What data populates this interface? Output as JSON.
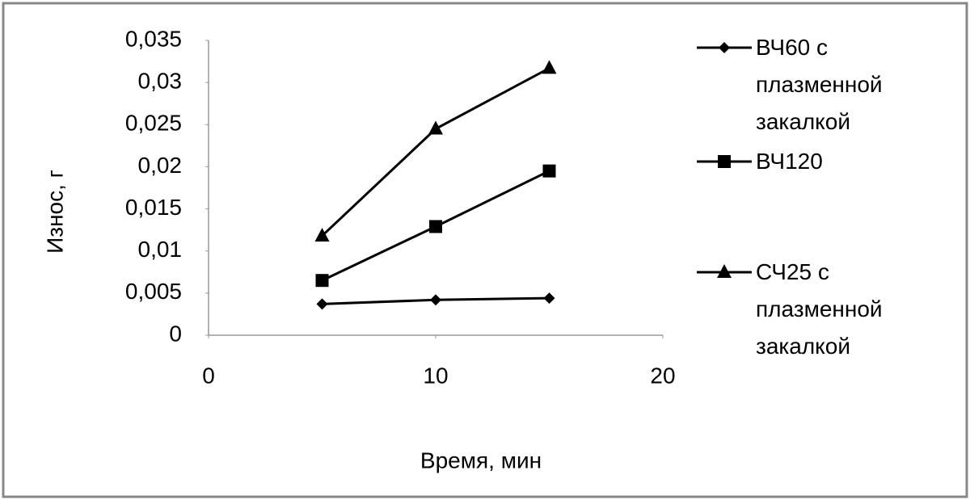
{
  "chart_data": {
    "type": "line",
    "xlabel": "Время, мин",
    "ylabel": "Износ, г",
    "x": [
      5,
      10,
      15
    ],
    "series": [
      {
        "name": "ВЧ60 с плазменной закалкой",
        "color": "#000000",
        "marker": "diamond",
        "values": [
          0.0037,
          0.0042,
          0.0044
        ]
      },
      {
        "name": "ВЧ120",
        "color": "#000000",
        "marker": "square",
        "values": [
          0.0065,
          0.0129,
          0.0195
        ]
      },
      {
        "name": "СЧ25 с плазменной закалкой",
        "color": "#000000",
        "marker": "triangle",
        "values": [
          0.0118,
          0.0245,
          0.0317
        ]
      }
    ],
    "xlim": [
      0,
      20
    ],
    "xticks": [
      0,
      10,
      20
    ],
    "ylim": [
      0,
      0.035
    ],
    "yticks": [
      0,
      {
        "value": 0.005,
        "label": "0,005"
      },
      {
        "value": 0.01,
        "label": "0,01"
      },
      {
        "value": 0.015,
        "label": "0,015"
      },
      {
        "value": 0.02,
        "label": "0,02"
      },
      {
        "value": 0.025,
        "label": "0,025"
      },
      {
        "value": 0.03,
        "label": "0,03"
      },
      {
        "value": 0.035,
        "label": "0,035"
      }
    ],
    "grid": false,
    "legend": "right"
  }
}
